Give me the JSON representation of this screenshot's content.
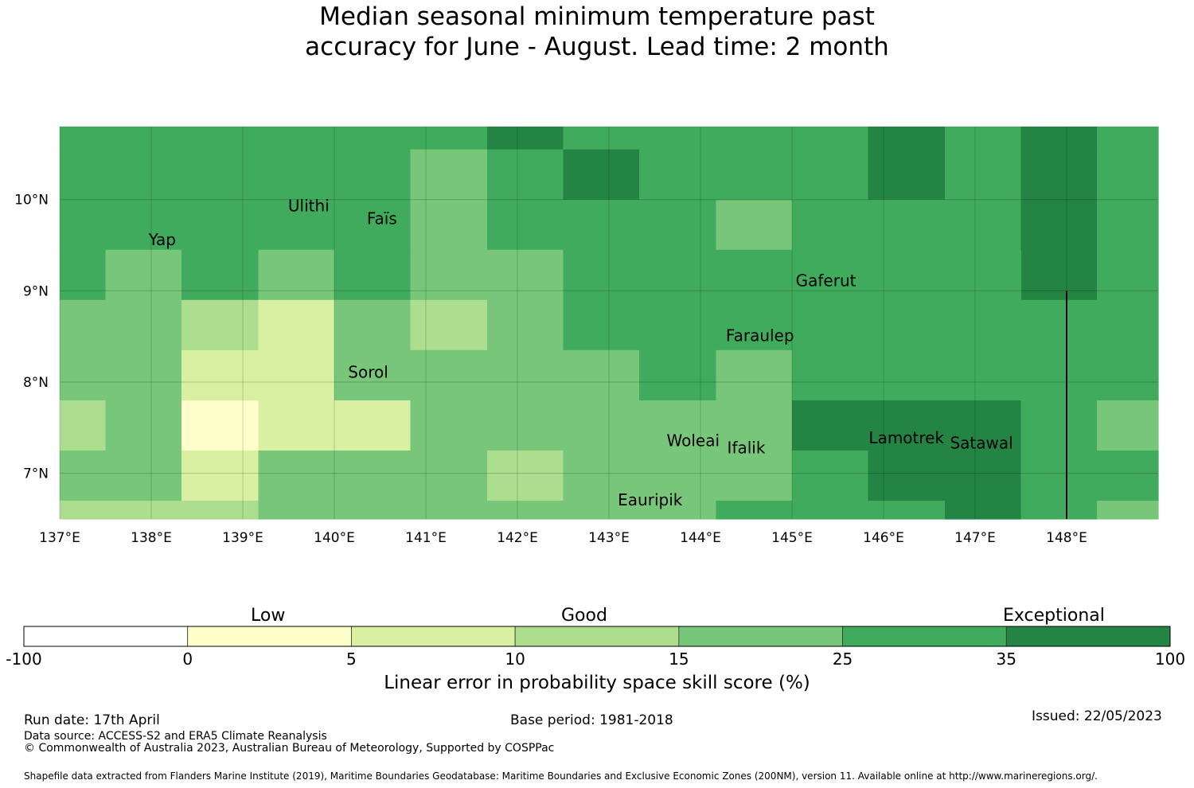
{
  "title": {
    "line1": "Median seasonal minimum temperature past",
    "line2": "accuracy for June - August. Lead time: 2 month"
  },
  "map": {
    "x_labels": [
      "137°E",
      "138°E",
      "139°E",
      "140°E",
      "141°E",
      "142°E",
      "143°E",
      "144°E",
      "145°E",
      "146°E",
      "147°E",
      "148°E"
    ],
    "y_labels": [
      "10°N",
      "9°N",
      "8°N",
      "7°N"
    ],
    "lon_range": [
      137,
      149
    ],
    "lat_range": [
      6.5,
      10.8
    ],
    "island_labels": [
      {
        "name": "Ulithi",
        "lon": 139.72,
        "lat": 9.87
      },
      {
        "name": "Yap",
        "lon": 138.12,
        "lat": 9.5
      },
      {
        "name": "Faïs",
        "lon": 140.52,
        "lat": 9.73
      },
      {
        "name": "Gaferut",
        "lon": 145.37,
        "lat": 9.05
      },
      {
        "name": "Faraulep",
        "lon": 144.65,
        "lat": 8.45
      },
      {
        "name": "Sorol",
        "lon": 140.37,
        "lat": 8.05
      },
      {
        "name": "Woleai",
        "lon": 143.92,
        "lat": 7.3
      },
      {
        "name": "Ifalik",
        "lon": 144.5,
        "lat": 7.22
      },
      {
        "name": "Lamotrek",
        "lon": 146.25,
        "lat": 7.33
      },
      {
        "name": "Satawal",
        "lon": 147.07,
        "lat": 7.27
      },
      {
        "name": "Eauripik",
        "lon": 143.45,
        "lat": 6.65
      }
    ],
    "grid_cells": [
      {
        "lon": 137.0,
        "lat": 10.55,
        "w": 0.5,
        "h": 0.25,
        "bin": 6
      },
      {
        "lon": 137.5,
        "lat": 10.55,
        "w": 3.33,
        "h": 0.25,
        "bin": 6
      },
      {
        "lon": 140.83,
        "lat": 10.55,
        "w": 0.84,
        "h": 0.25,
        "bin": 6
      },
      {
        "lon": 141.67,
        "lat": 10.55,
        "w": 0.83,
        "h": 0.25,
        "bin": 7
      },
      {
        "lon": 142.5,
        "lat": 10.55,
        "w": 3.33,
        "h": 0.25,
        "bin": 6
      },
      {
        "lon": 145.83,
        "lat": 10.55,
        "w": 0.84,
        "h": 0.25,
        "bin": 7
      },
      {
        "lon": 146.67,
        "lat": 10.55,
        "w": 0.83,
        "h": 0.25,
        "bin": 6
      },
      {
        "lon": 147.5,
        "lat": 10.55,
        "w": 0.83,
        "h": 0.25,
        "bin": 7
      },
      {
        "lon": 148.33,
        "lat": 10.55,
        "w": 0.67,
        "h": 0.25,
        "bin": 6
      },
      {
        "lon": 137.0,
        "lat": 9.45,
        "w": 3.83,
        "h": 1.1,
        "bin": 6
      },
      {
        "lon": 140.83,
        "lat": 9.45,
        "w": 0.84,
        "h": 1.1,
        "bin": 5
      },
      {
        "lon": 141.67,
        "lat": 9.45,
        "w": 0.83,
        "h": 1.1,
        "bin": 6
      },
      {
        "lon": 142.5,
        "lat": 10.0,
        "w": 0.83,
        "h": 0.55,
        "bin": 7
      },
      {
        "lon": 142.5,
        "lat": 9.45,
        "w": 0.83,
        "h": 0.55,
        "bin": 6
      },
      {
        "lon": 143.33,
        "lat": 9.45,
        "w": 0.84,
        "h": 1.1,
        "bin": 6
      },
      {
        "lon": 144.17,
        "lat": 9.45,
        "w": 0.83,
        "h": 0.55,
        "bin": 5
      },
      {
        "lon": 144.17,
        "lat": 10.0,
        "w": 0.83,
        "h": 0.55,
        "bin": 6
      },
      {
        "lon": 145.0,
        "lat": 9.45,
        "w": 0.83,
        "h": 1.1,
        "bin": 6
      },
      {
        "lon": 145.83,
        "lat": 10.0,
        "w": 0.84,
        "h": 0.55,
        "bin": 7
      },
      {
        "lon": 145.83,
        "lat": 9.45,
        "w": 0.84,
        "h": 0.55,
        "bin": 6
      },
      {
        "lon": 146.67,
        "lat": 9.45,
        "w": 0.83,
        "h": 1.1,
        "bin": 6
      },
      {
        "lon": 147.5,
        "lat": 8.9,
        "w": 0.83,
        "h": 1.65,
        "bin": 7
      },
      {
        "lon": 148.33,
        "lat": 8.9,
        "w": 0.67,
        "h": 1.65,
        "bin": 6
      },
      {
        "lon": 137.0,
        "lat": 8.9,
        "w": 0.5,
        "h": 0.55,
        "bin": 6
      },
      {
        "lon": 137.5,
        "lat": 8.9,
        "w": 0.83,
        "h": 0.55,
        "bin": 5
      },
      {
        "lon": 138.33,
        "lat": 8.9,
        "w": 0.84,
        "h": 0.55,
        "bin": 6
      },
      {
        "lon": 139.17,
        "lat": 8.9,
        "w": 0.83,
        "h": 0.55,
        "bin": 5
      },
      {
        "lon": 140.0,
        "lat": 8.9,
        "w": 0.83,
        "h": 0.55,
        "bin": 6
      },
      {
        "lon": 140.83,
        "lat": 8.9,
        "w": 1.67,
        "h": 0.55,
        "bin": 5
      },
      {
        "lon": 142.5,
        "lat": 8.9,
        "w": 5.0,
        "h": 0.55,
        "bin": 6
      },
      {
        "lon": 137.0,
        "lat": 8.35,
        "w": 1.33,
        "h": 0.55,
        "bin": 5
      },
      {
        "lon": 138.33,
        "lat": 8.35,
        "w": 0.84,
        "h": 0.55,
        "bin": 4
      },
      {
        "lon": 139.17,
        "lat": 8.35,
        "w": 0.83,
        "h": 0.55,
        "bin": 3
      },
      {
        "lon": 140.0,
        "lat": 8.35,
        "w": 0.83,
        "h": 0.55,
        "bin": 5
      },
      {
        "lon": 140.83,
        "lat": 8.35,
        "w": 0.84,
        "h": 0.55,
        "bin": 4
      },
      {
        "lon": 141.67,
        "lat": 8.35,
        "w": 0.83,
        "h": 0.55,
        "bin": 5
      },
      {
        "lon": 142.5,
        "lat": 8.35,
        "w": 5.0,
        "h": 0.55,
        "bin": 6
      },
      {
        "lon": 147.5,
        "lat": 8.35,
        "w": 1.5,
        "h": 0.55,
        "bin": 6
      },
      {
        "lon": 137.0,
        "lat": 7.8,
        "w": 1.33,
        "h": 0.55,
        "bin": 5
      },
      {
        "lon": 138.33,
        "lat": 7.8,
        "w": 1.67,
        "h": 0.55,
        "bin": 3
      },
      {
        "lon": 140.0,
        "lat": 7.8,
        "w": 3.33,
        "h": 0.55,
        "bin": 5
      },
      {
        "lon": 143.33,
        "lat": 7.8,
        "w": 0.84,
        "h": 0.55,
        "bin": 6
      },
      {
        "lon": 144.17,
        "lat": 7.8,
        "w": 0.83,
        "h": 0.55,
        "bin": 5
      },
      {
        "lon": 145.0,
        "lat": 7.8,
        "w": 4.0,
        "h": 0.55,
        "bin": 6
      },
      {
        "lon": 137.0,
        "lat": 7.25,
        "w": 0.5,
        "h": 0.55,
        "bin": 4
      },
      {
        "lon": 137.5,
        "lat": 7.25,
        "w": 0.83,
        "h": 0.55,
        "bin": 5
      },
      {
        "lon": 138.33,
        "lat": 7.25,
        "w": 0.84,
        "h": 0.55,
        "bin": 2
      },
      {
        "lon": 139.17,
        "lat": 7.25,
        "w": 0.83,
        "h": 0.55,
        "bin": 3
      },
      {
        "lon": 140.0,
        "lat": 7.25,
        "w": 0.83,
        "h": 0.55,
        "bin": 3
      },
      {
        "lon": 140.83,
        "lat": 7.25,
        "w": 4.17,
        "h": 0.55,
        "bin": 5
      },
      {
        "lon": 145.0,
        "lat": 7.25,
        "w": 2.5,
        "h": 0.55,
        "bin": 7
      },
      {
        "lon": 147.5,
        "lat": 7.25,
        "w": 0.83,
        "h": 0.55,
        "bin": 6
      },
      {
        "lon": 148.33,
        "lat": 7.25,
        "w": 0.67,
        "h": 0.55,
        "bin": 5
      },
      {
        "lon": 137.0,
        "lat": 6.7,
        "w": 1.33,
        "h": 0.55,
        "bin": 5
      },
      {
        "lon": 138.33,
        "lat": 6.7,
        "w": 0.84,
        "h": 0.55,
        "bin": 3
      },
      {
        "lon": 139.17,
        "lat": 6.7,
        "w": 2.5,
        "h": 0.55,
        "bin": 5
      },
      {
        "lon": 141.67,
        "lat": 6.7,
        "w": 0.83,
        "h": 0.55,
        "bin": 4
      },
      {
        "lon": 142.5,
        "lat": 6.7,
        "w": 2.5,
        "h": 0.55,
        "bin": 5
      },
      {
        "lon": 145.0,
        "lat": 6.7,
        "w": 0.83,
        "h": 0.55,
        "bin": 6
      },
      {
        "lon": 145.83,
        "lat": 6.7,
        "w": 1.67,
        "h": 0.55,
        "bin": 7
      },
      {
        "lon": 147.5,
        "lat": 6.7,
        "w": 1.5,
        "h": 0.55,
        "bin": 6
      },
      {
        "lon": 137.0,
        "lat": 6.5,
        "w": 2.17,
        "h": 0.2,
        "bin": 4
      },
      {
        "lon": 139.17,
        "lat": 6.5,
        "w": 5.0,
        "h": 0.2,
        "bin": 5
      },
      {
        "lon": 144.17,
        "lat": 6.5,
        "w": 0.83,
        "h": 0.2,
        "bin": 6
      },
      {
        "lon": 145.0,
        "lat": 6.5,
        "w": 1.67,
        "h": 0.2,
        "bin": 6
      },
      {
        "lon": 146.67,
        "lat": 6.5,
        "w": 0.83,
        "h": 0.2,
        "bin": 7
      },
      {
        "lon": 147.5,
        "lat": 6.5,
        "w": 0.83,
        "h": 0.2,
        "bin": 6
      },
      {
        "lon": 148.33,
        "lat": 6.5,
        "w": 0.67,
        "h": 0.2,
        "bin": 5
      }
    ],
    "boundary_line": {
      "lon": 148.0,
      "lat_from": 6.5,
      "lat_to": 9.0
    }
  },
  "colorbar": {
    "categories": [
      "Low",
      "Good",
      "Exceptional"
    ],
    "ticks": [
      "-100",
      "0",
      "5",
      "10",
      "15",
      "25",
      "35",
      "100"
    ],
    "colors": [
      "#ffffff",
      "#ffffcc",
      "#d9f0a3",
      "#addd8e",
      "#78c679",
      "#41ab5d",
      "#238443"
    ],
    "title": "Linear error in probability space skill score (%)"
  },
  "footer": {
    "run_date": "Run date: 17th April",
    "base_period": "Base period: 1981-2018",
    "issued": "Issued: 22/05/2023",
    "data_source": "Data source: ACCESS-S2 and ERA5 Climate Reanalysis",
    "copyright": "© Commonwealth of Australia 2023, Australian Bureau of Meteorology, Supported by COSPPac",
    "shapefile": "Shapefile data extracted from Flanders Marine Institute (2019), Maritime Boundaries Geodatabase: Maritime Boundaries and Exclusive Economic Zones (200NM), version 11. Available online at http://www.marineregions.org/."
  }
}
